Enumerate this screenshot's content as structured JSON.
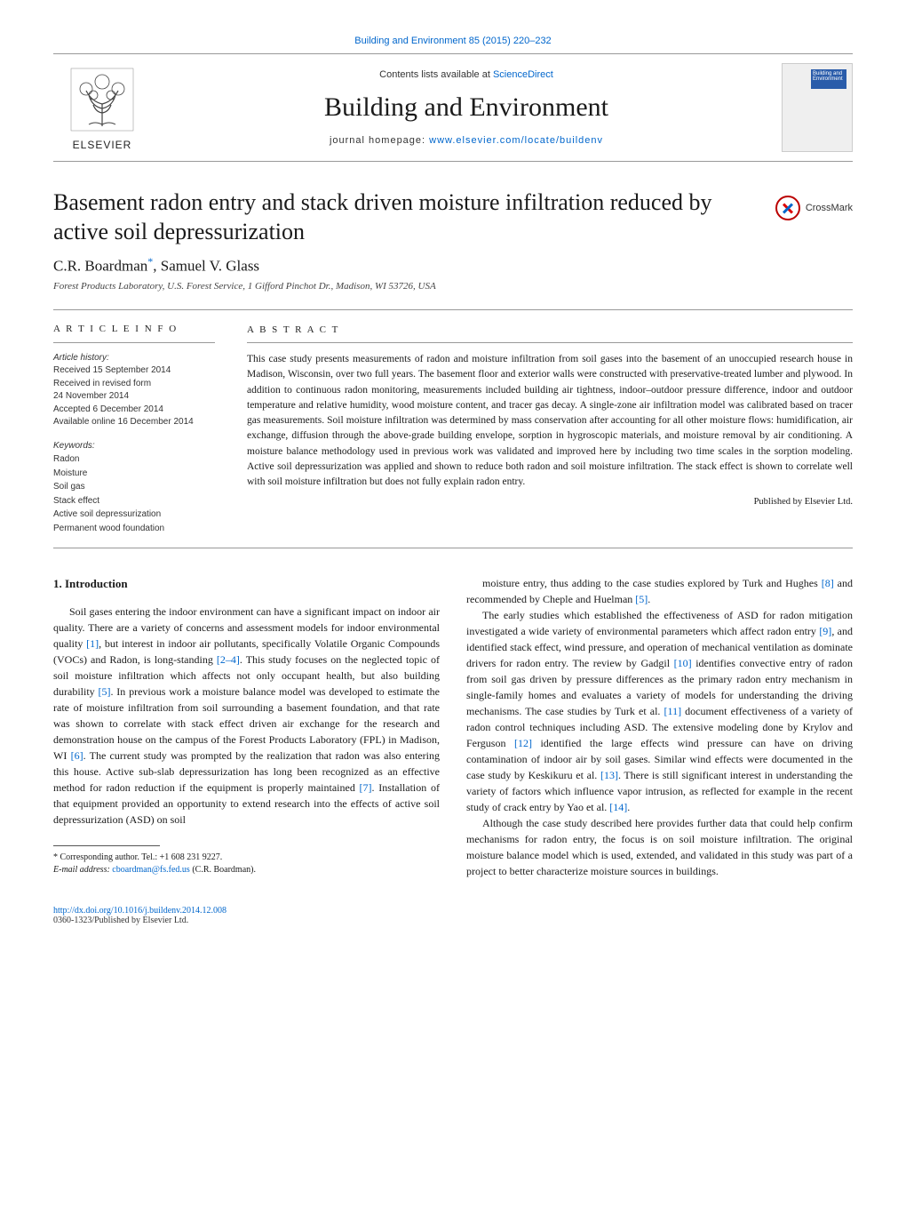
{
  "journal_ref": "Building and Environment 85 (2015) 220–232",
  "masthead": {
    "elsevier": "ELSEVIER",
    "contents_prefix": "Contents lists available at ",
    "contents_link": "ScienceDirect",
    "journal_title": "Building and Environment",
    "homepage_prefix": "journal homepage: ",
    "homepage_url": "www.elsevier.com/locate/buildenv",
    "cover_title": "Building and Environment"
  },
  "article": {
    "title": "Basement radon entry and stack driven moisture infiltration reduced by active soil depressurization",
    "crossmark": "CrossMark",
    "authors": "C.R. Boardman",
    "author_sup": "*",
    "authors_rest": ", Samuel V. Glass",
    "affiliation": "Forest Products Laboratory, U.S. Forest Service, 1 Gifford Pinchot Dr., Madison, WI 53726, USA"
  },
  "article_info": {
    "heading": "A R T I C L E  I N F O",
    "history_label": "Article history:",
    "history": [
      "Received 15 September 2014",
      "Received in revised form",
      "24 November 2014",
      "Accepted 6 December 2014",
      "Available online 16 December 2014"
    ],
    "keywords_label": "Keywords:",
    "keywords": [
      "Radon",
      "Moisture",
      "Soil gas",
      "Stack effect",
      "Active soil depressurization",
      "Permanent wood foundation"
    ]
  },
  "abstract": {
    "heading": "A B S T R A C T",
    "text": "This case study presents measurements of radon and moisture infiltration from soil gases into the basement of an unoccupied research house in Madison, Wisconsin, over two full years. The basement floor and exterior walls were constructed with preservative-treated lumber and plywood. In addition to continuous radon monitoring, measurements included building air tightness, indoor–outdoor pressure difference, indoor and outdoor temperature and relative humidity, wood moisture content, and tracer gas decay. A single-zone air infiltration model was calibrated based on tracer gas measurements. Soil moisture infiltration was determined by mass conservation after accounting for all other moisture flows: humidification, air exchange, diffusion through the above-grade building envelope, sorption in hygroscopic materials, and moisture removal by air conditioning. A moisture balance methodology used in previous work was validated and improved here by including two time scales in the sorption modeling. Active soil depressurization was applied and shown to reduce both radon and soil moisture infiltration. The stack effect is shown to correlate well with soil moisture infiltration but does not fully explain radon entry.",
    "publisher": "Published by Elsevier Ltd."
  },
  "body": {
    "section_heading": "1. Introduction",
    "col1_p1": "Soil gases entering the indoor environment can have a significant impact on indoor air quality. There are a variety of concerns and assessment models for indoor environmental quality [1], but interest in indoor air pollutants, specifically Volatile Organic Compounds (VOCs) and Radon, is long-standing [2–4]. This study focuses on the neglected topic of soil moisture infiltration which affects not only occupant health, but also building durability [5]. In previous work a moisture balance model was developed to estimate the rate of moisture infiltration from soil surrounding a basement foundation, and that rate was shown to correlate with stack effect driven air exchange for the research and demonstration house on the campus of the Forest Products Laboratory (FPL) in Madison, WI [6]. The current study was prompted by the realization that radon was also entering this house. Active sub-slab depressurization has long been recognized as an effective method for radon reduction if the equipment is properly maintained [7]. Installation of that equipment provided an opportunity to extend research into the effects of active soil depressurization (ASD) on soil",
    "col2_p1": "moisture entry, thus adding to the case studies explored by Turk and Hughes [8] and recommended by Cheple and Huelman [5].",
    "col2_p2": "The early studies which established the effectiveness of ASD for radon mitigation investigated a wide variety of environmental parameters which affect radon entry [9], and identified stack effect, wind pressure, and operation of mechanical ventilation as dominate drivers for radon entry. The review by Gadgil [10] identifies convective entry of radon from soil gas driven by pressure differences as the primary radon entry mechanism in single-family homes and evaluates a variety of models for understanding the driving mechanisms. The case studies by Turk et al. [11] document effectiveness of a variety of radon control techniques including ASD. The extensive modeling done by Krylov and Ferguson [12] identified the large effects wind pressure can have on driving contamination of indoor air by soil gases. Similar wind effects were documented in the case study by Keskikuru et al. [13]. There is still significant interest in understanding the variety of factors which influence vapor intrusion, as reflected for example in the recent study of crack entry by Yao et al. [14].",
    "col2_p3": "Although the case study described here provides further data that could help confirm mechanisms for radon entry, the focus is on soil moisture infiltration. The original moisture balance model which is used, extended, and validated in this study was part of a project to better characterize moisture sources in buildings."
  },
  "footnote": {
    "corresponding": "* Corresponding author. Tel.: +1 608 231 9227.",
    "email_label": "E-mail address: ",
    "email": "cboardman@fs.fed.us",
    "email_suffix": " (C.R. Boardman)."
  },
  "footer": {
    "doi": "http://dx.doi.org/10.1016/j.buildenv.2014.12.008",
    "copyright": "0360-1323/Published by Elsevier Ltd."
  },
  "colors": {
    "link": "#0066cc",
    "text": "#1a1a1a",
    "rule": "#999999",
    "cover_band": "#2a5caa"
  }
}
